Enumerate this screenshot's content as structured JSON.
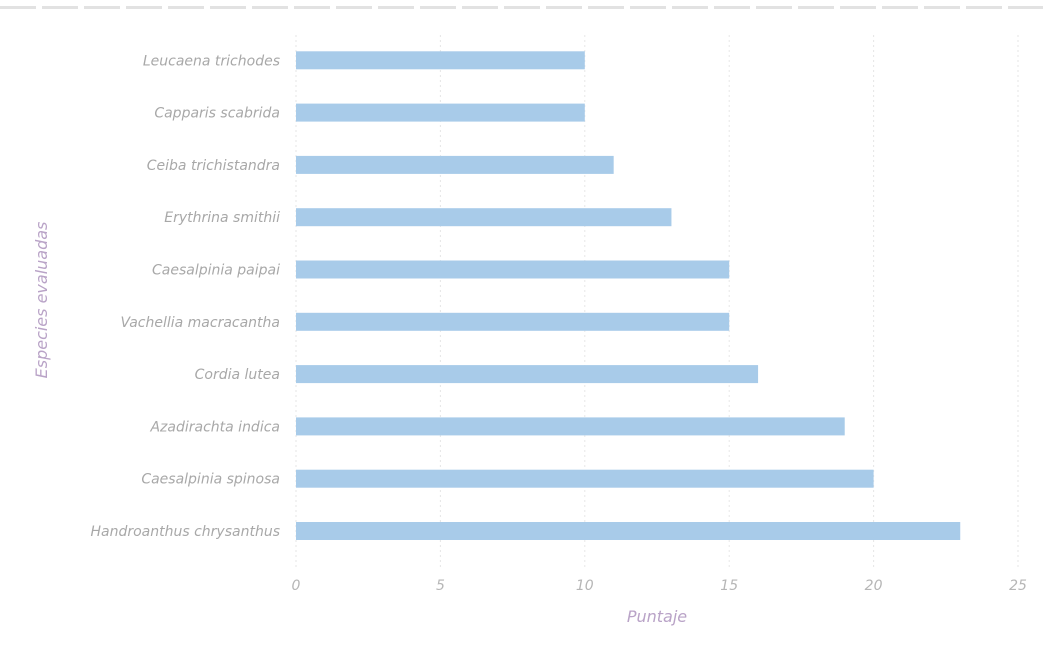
{
  "chart_data": {
    "type": "bar",
    "orientation": "horizontal",
    "title": "",
    "xlabel": "Puntaje",
    "ylabel": "Especies evaluadas",
    "xlim": [
      0,
      25
    ],
    "xticks": [
      "0",
      "5",
      "10",
      "15",
      "20",
      "25"
    ],
    "categories": [
      "Handroanthus chrysanthus",
      "Caesalpinia spinosa",
      "Azadirachta indica",
      "Cordia lutea",
      "Vachellia macracantha",
      "Caesalpinia paipai",
      "Erythrina smithii",
      "Ceiba trichistandra",
      "Capparis scabrida",
      "Leucaena trichodes"
    ],
    "values": [
      23,
      20,
      19,
      16,
      15,
      15,
      13,
      11,
      10,
      10
    ],
    "grid": true,
    "legend": "none",
    "colors": {
      "bar": "#a8cbe9",
      "axis_title": "#b9a3c7",
      "tick_text": "#b6b6b6",
      "label_text": "#a8a8a8",
      "grid": "#e6e6e6"
    }
  }
}
